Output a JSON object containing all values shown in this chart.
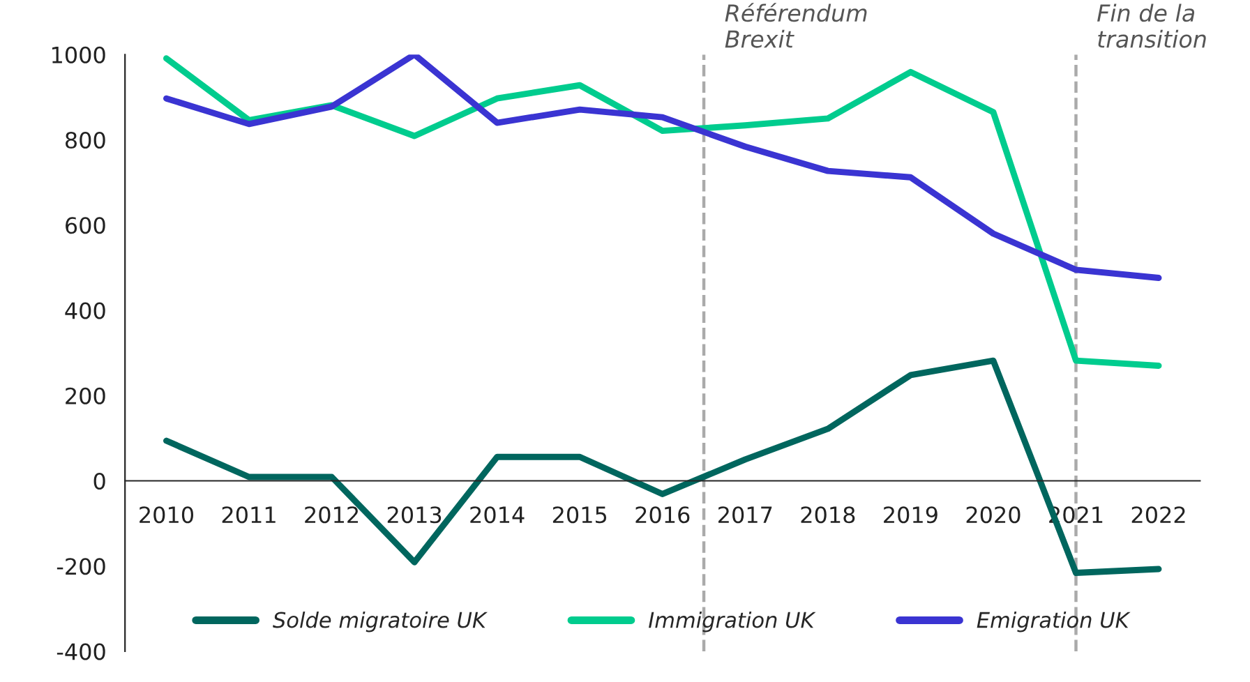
{
  "chart_data": {
    "type": "line",
    "x": [
      2010,
      2011,
      2012,
      2013,
      2014,
      2015,
      2016,
      2017,
      2018,
      2019,
      2020,
      2021,
      2022
    ],
    "series": [
      {
        "name": "Solde migratoire UK",
        "color": "#00665e",
        "values": [
          94,
          9,
          9,
          -191,
          56,
          56,
          -31,
          50,
          122,
          248,
          282,
          -216,
          -207
        ]
      },
      {
        "name": "Immigration UK",
        "color": "#00cc8e",
        "values": [
          991,
          846,
          881,
          809,
          897,
          928,
          821,
          834,
          850,
          959,
          865,
          282,
          270
        ]
      },
      {
        "name": "Emigration UK",
        "color": "#3a34d2",
        "values": [
          897,
          837,
          878,
          1000,
          840,
          871,
          853,
          784,
          727,
          712,
          580,
          495,
          476
        ]
      }
    ],
    "xlim": [
      2009.5,
      2022.5
    ],
    "xticks": [
      2010,
      2011,
      2012,
      2013,
      2014,
      2015,
      2016,
      2017,
      2018,
      2019,
      2020,
      2021,
      2022
    ],
    "ylim": [
      -400,
      1000
    ],
    "yticks": [
      -400,
      -200,
      0,
      200,
      400,
      600,
      800,
      1000
    ],
    "ref_lines": [
      {
        "axis": "x",
        "value": 2016.5,
        "label": "Référendum\nBrexit",
        "color": "#aaaaaa",
        "line_style": "dashed"
      },
      {
        "axis": "x",
        "value": 2021,
        "label": "Fin de la\ntransition",
        "color": "#aaaaaa",
        "line_style": "dashed"
      }
    ],
    "legend": "bottom",
    "grid": false,
    "line_style": "solid",
    "marker": "none"
  }
}
